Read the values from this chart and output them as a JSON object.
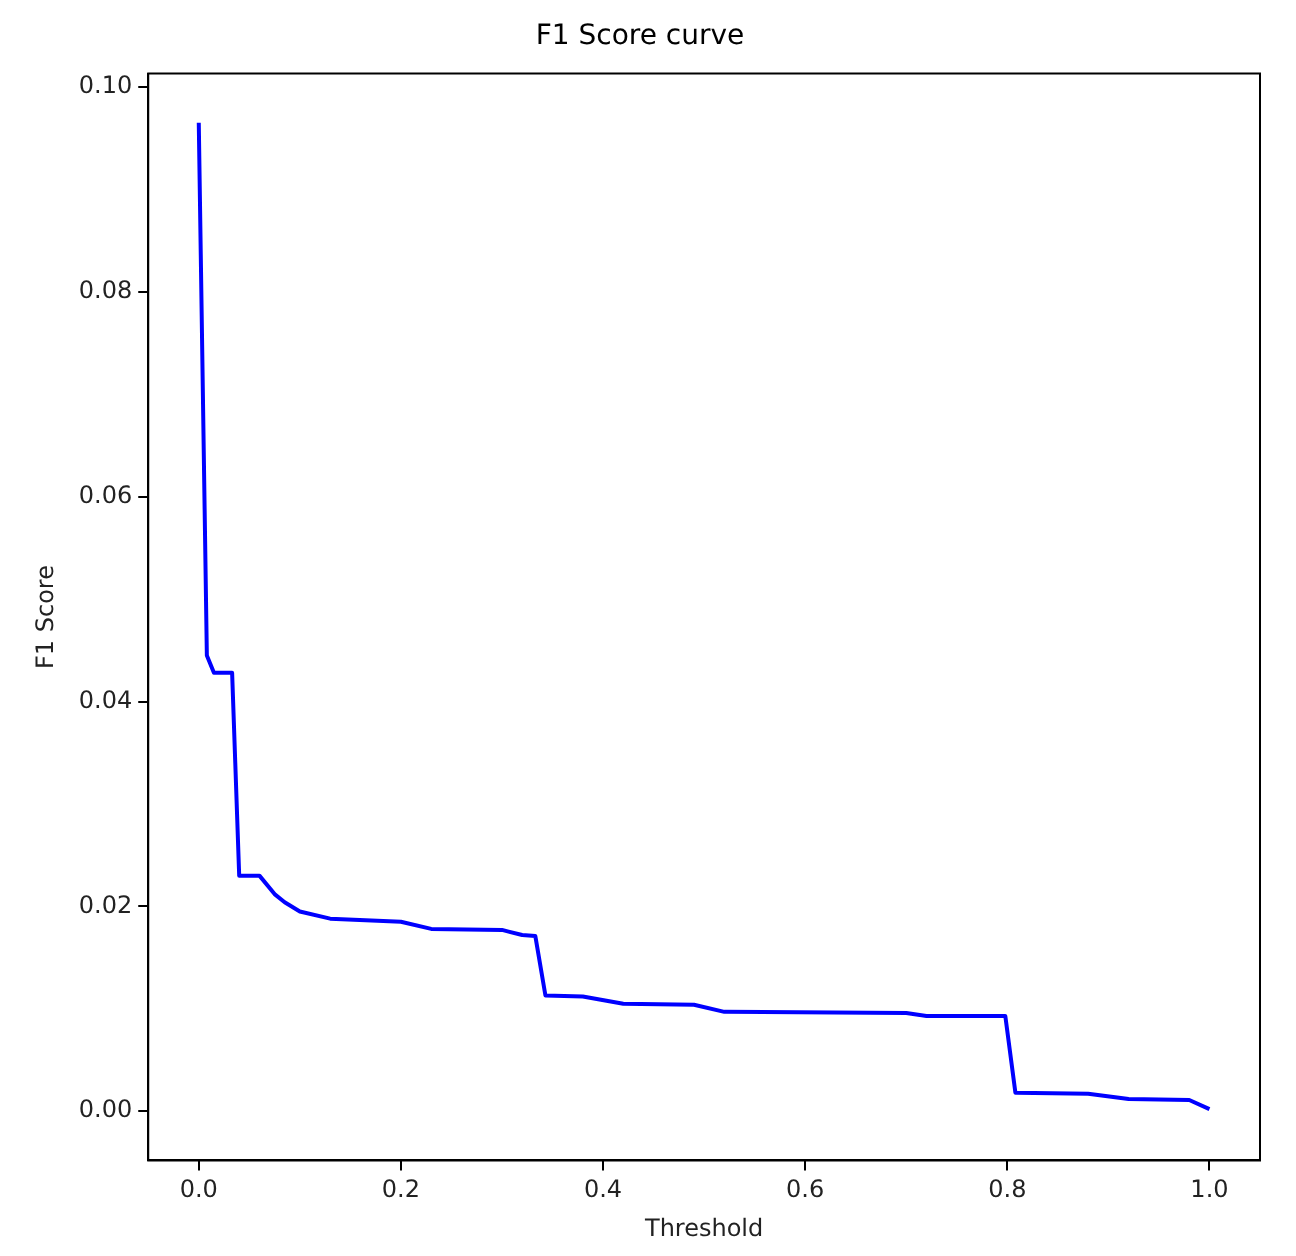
{
  "chart_data": {
    "type": "line",
    "title": "F1 Score curve",
    "xlabel": "Threshold",
    "ylabel": "F1 Score",
    "x": [
      0,
      0.008,
      0.015,
      0.02,
      0.033,
      0.04,
      0.06,
      0.075,
      0.085,
      0.1,
      0.13,
      0.2,
      0.23,
      0.3,
      0.32,
      0.333,
      0.343,
      0.38,
      0.42,
      0.49,
      0.52,
      0.7,
      0.72,
      0.798,
      0.808,
      0.88,
      0.92,
      0.98,
      1.0
    ],
    "series": [
      {
        "color": "#0000ff",
        "values": [
          0.0965,
          0.0445,
          0.0428,
          0.0428,
          0.0428,
          0.023,
          0.023,
          0.0212,
          0.0204,
          0.0195,
          0.0188,
          0.0185,
          0.0178,
          0.0177,
          0.0172,
          0.0171,
          0.0113,
          0.0112,
          0.0105,
          0.0104,
          0.0097,
          0.0096,
          0.0093,
          0.0093,
          0.0018,
          0.0017,
          0.0012,
          0.0011,
          0.0002
        ]
      }
    ],
    "xlim": [
      -0.05,
      1.05
    ],
    "xticks": [
      {
        "value": 0,
        "label": "0.0"
      },
      0.2,
      0.4,
      0.6,
      0.8,
      {
        "value": 1,
        "label": "1.0"
      }
    ],
    "ylim": [
      -0.0048,
      0.1013
    ],
    "yticks": [
      {
        "value": 0,
        "label": "0.00"
      },
      {
        "value": 0.02,
        "label": "0.02"
      },
      {
        "value": 0.04,
        "label": "0.04"
      },
      {
        "value": 0.06,
        "label": "0.06"
      },
      {
        "value": 0.08,
        "label": "0.08"
      },
      {
        "value": 0.1,
        "label": "0.10"
      }
    ],
    "grid": false,
    "legend": false,
    "marker": "none",
    "line_style": "solid"
  }
}
